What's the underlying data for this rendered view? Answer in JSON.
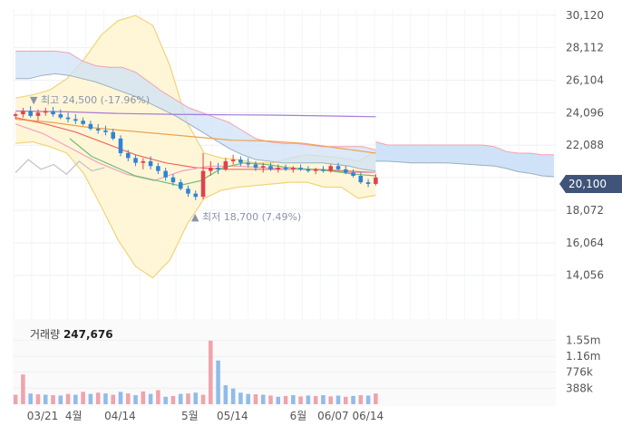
{
  "chart_data": [
    {
      "type": "candlestick",
      "title": "",
      "y_ticks": [
        "30,120",
        "28,112",
        "26,104",
        "24,096",
        "22,088",
        "20,100",
        "18,072",
        "16,064",
        "14,056"
      ],
      "y_tick_values": [
        30120,
        28112,
        26104,
        24096,
        22088,
        20100,
        18072,
        16064,
        14056
      ],
      "ylim": [
        13200,
        30500
      ],
      "current_price_label": "20,100",
      "current_price": 20100,
      "high_annotation": "▼ 최고 24,500 (-17.96%)",
      "low_annotation": "▲ 최저 18,700 (7.49%)",
      "total_days": 140,
      "candle_days": 94,
      "candles": [
        [
          23.9,
          24.1,
          23.7,
          24.0
        ],
        [
          24.0,
          24.4,
          23.8,
          24.2
        ],
        [
          24.2,
          24.5,
          23.8,
          23.9
        ],
        [
          23.9,
          24.3,
          23.6,
          24.1
        ],
        [
          24.1,
          24.4,
          23.9,
          24.2
        ],
        [
          24.2,
          24.45,
          23.85,
          24.0
        ],
        [
          24.0,
          24.3,
          23.7,
          23.8
        ],
        [
          23.8,
          24.1,
          23.5,
          23.7
        ],
        [
          23.7,
          24.0,
          23.4,
          23.6
        ],
        [
          23.6,
          23.8,
          23.3,
          23.4
        ],
        [
          23.4,
          23.6,
          23.0,
          23.1
        ],
        [
          23.1,
          23.4,
          22.8,
          23.0
        ],
        [
          23.0,
          23.3,
          22.7,
          22.9
        ],
        [
          22.9,
          23.1,
          22.4,
          22.5
        ],
        [
          22.5,
          22.7,
          21.4,
          21.6
        ],
        [
          21.6,
          21.8,
          21.1,
          21.3
        ],
        [
          21.3,
          21.5,
          20.8,
          21.0
        ],
        [
          21.0,
          21.3,
          20.6,
          21.1
        ],
        [
          21.1,
          21.4,
          20.6,
          20.8
        ],
        [
          20.8,
          21.0,
          20.3,
          20.5
        ],
        [
          20.5,
          20.7,
          19.9,
          20.1
        ],
        [
          20.1,
          20.3,
          19.6,
          19.8
        ],
        [
          19.8,
          20.0,
          19.3,
          19.4
        ],
        [
          19.4,
          19.6,
          18.9,
          19.1
        ],
        [
          19.1,
          19.3,
          18.7,
          18.9
        ],
        [
          18.9,
          21.6,
          18.75,
          20.5
        ],
        [
          20.5,
          21.1,
          20.2,
          20.7
        ],
        [
          20.7,
          21.0,
          20.3,
          20.6
        ],
        [
          20.6,
          21.3,
          20.5,
          21.1
        ],
        [
          21.1,
          21.5,
          20.9,
          21.2
        ],
        [
          21.2,
          21.4,
          20.8,
          21.0
        ],
        [
          21.0,
          21.3,
          20.7,
          20.9
        ],
        [
          20.9,
          21.1,
          20.5,
          20.7
        ],
        [
          20.7,
          21.0,
          20.4,
          20.8
        ],
        [
          20.8,
          21.0,
          20.5,
          20.6
        ],
        [
          20.6,
          20.9,
          20.4,
          20.7
        ],
        [
          20.7,
          20.9,
          20.5,
          20.6
        ],
        [
          20.6,
          20.8,
          20.4,
          20.7
        ],
        [
          20.7,
          20.9,
          20.5,
          20.6
        ],
        [
          20.6,
          20.8,
          20.4,
          20.5
        ],
        [
          20.5,
          20.7,
          20.3,
          20.6
        ],
        [
          20.6,
          20.8,
          20.4,
          20.5
        ],
        [
          20.5,
          20.9,
          20.4,
          20.8
        ],
        [
          20.8,
          21.0,
          20.5,
          20.6
        ],
        [
          20.6,
          20.8,
          20.3,
          20.4
        ],
        [
          20.4,
          20.6,
          20.1,
          20.2
        ],
        [
          20.2,
          20.4,
          19.7,
          19.8
        ],
        [
          19.8,
          20.0,
          19.5,
          19.7
        ],
        [
          19.7,
          20.3,
          19.6,
          20.1
        ]
      ],
      "ichimoku_band": {
        "upper_left": [
          27.9,
          27.9,
          27.9,
          27.9,
          27.8,
          27.3,
          27.0,
          26.9,
          26.9,
          26.6,
          26.0,
          25.4,
          24.9,
          24.4,
          24.1,
          23.8,
          23.5,
          23.0,
          22.5,
          22.3,
          22.2,
          22.2,
          22.1,
          22.0,
          22.0,
          22.0,
          22.0,
          21.8
        ],
        "lower_left": [
          26.2,
          26.2,
          26.4,
          26.5,
          26.4,
          26.2,
          26.0,
          25.7,
          25.4,
          25.1,
          24.7,
          24.3,
          23.9,
          23.4,
          22.9,
          22.4,
          21.9,
          21.5,
          21.2,
          21.1,
          21.0,
          21.0,
          21.0,
          21.0,
          20.9,
          20.8,
          20.6,
          20.5
        ],
        "cloud_upper": [
          22.3,
          22.1,
          22.1,
          22.1,
          22.1,
          22.1,
          22.1,
          22.1,
          22.1,
          22.1,
          22.0,
          21.7,
          21.6,
          21.6,
          21.5,
          21.5
        ],
        "cloud_lower": [
          21.1,
          21.1,
          21.05,
          21.0,
          21.0,
          21.0,
          21.0,
          20.95,
          20.9,
          20.85,
          20.8,
          20.65,
          20.45,
          20.35,
          20.2,
          20.15
        ]
      },
      "bollinger": {
        "upper": [
          25.0,
          25.2,
          25.5,
          26.2,
          27.4,
          28.9,
          29.8,
          30.1,
          29.5,
          27.0,
          23.5,
          21.6,
          21.3,
          21.2,
          21.0,
          21.0,
          21.3,
          21.5,
          21.4,
          21.3,
          21.1,
          21.7
        ],
        "lower": [
          22.2,
          22.3,
          22.0,
          21.6,
          20.3,
          18.3,
          16.2,
          14.6,
          13.9,
          15.0,
          17.2,
          18.8,
          19.3,
          19.5,
          19.6,
          19.7,
          19.8,
          19.8,
          19.5,
          19.5,
          18.8,
          19.0
        ]
      },
      "moving_averages": {
        "purple": [
          24.2,
          24.15,
          24.05,
          24.0,
          23.97,
          23.95,
          23.9,
          23.85
        ],
        "orange": [
          23.7,
          23.5,
          23.2,
          23.0,
          22.8,
          22.6,
          22.4,
          22.35,
          22.2,
          21.9,
          21.6
        ],
        "red": [
          23.8,
          23.4,
          22.9,
          22.2,
          21.5,
          21.0,
          20.7,
          20.6,
          20.6,
          20.6,
          20.6,
          20.5,
          20.4
        ],
        "pink": [
          23.4,
          22.8,
          21.9,
          21.0,
          20.3,
          19.9,
          20.5,
          20.8,
          20.8,
          20.7,
          20.6,
          20.55,
          20.4,
          20.4
        ],
        "green": [
          22.5,
          21.4,
          20.8,
          20.2,
          19.9,
          19.6,
          19.9,
          20.7,
          21.0,
          20.9,
          20.7,
          20.6,
          20.5,
          20.3,
          20.2
        ],
        "gray": [
          20.4,
          21.2,
          20.6,
          20.9,
          20.3,
          21.1,
          20.5,
          20.7
        ]
      },
      "colors": {
        "up": "#e2404b",
        "down": "#2f83d4",
        "cloud_fill": "#cfe2f7",
        "cloud_line": "#9ab0bf",
        "cloud_edge": "#f4a0b2",
        "bollinger_fill": "#fff6d8",
        "bollinger_line": "#f0d478",
        "current_badge": "#3f5478"
      }
    },
    {
      "type": "bar",
      "title": "거래량 247,676",
      "title_label": "거래량",
      "title_value": "247,676",
      "y_ticks": [
        "1.55m",
        "1.16m",
        "776k",
        "388k"
      ],
      "y_tick_values": [
        1550000,
        1160000,
        776000,
        388000
      ],
      "ylim": [
        0,
        2000000
      ],
      "x_ticks": [
        {
          "label": "03/21",
          "day": 7
        },
        {
          "label": "4월",
          "day": 15
        },
        {
          "label": "04/14",
          "day": 27
        },
        {
          "label": "5월",
          "day": 45
        },
        {
          "label": "05/14",
          "day": 56
        },
        {
          "label": "6월",
          "day": 73
        },
        {
          "label": "06/07",
          "day": 82
        },
        {
          "label": "06/14",
          "day": 91
        }
      ],
      "values": [
        230000,
        720000,
        260000,
        240000,
        230000,
        220000,
        210000,
        250000,
        230000,
        300000,
        250000,
        280000,
        260000,
        230000,
        300000,
        260000,
        220000,
        310000,
        250000,
        340000,
        180000,
        200000,
        250000,
        260000,
        280000,
        230000,
        1540000,
        1060000,
        460000,
        380000,
        280000,
        250000,
        240000,
        230000,
        210000,
        180000,
        200000,
        220000,
        190000,
        210000,
        200000,
        220000,
        190000,
        210000,
        180000,
        200000,
        220000,
        210000,
        260000
      ],
      "up_flags": [
        true,
        true,
        false,
        true,
        false,
        true,
        false,
        true,
        false,
        true,
        false,
        true,
        false,
        true,
        false,
        true,
        false,
        true,
        false,
        true,
        false,
        true,
        false,
        true,
        false,
        true,
        true,
        false,
        false,
        false,
        false,
        false,
        true,
        false,
        true,
        false,
        true,
        false,
        true,
        false,
        true,
        false,
        true,
        false,
        true,
        false,
        true,
        false,
        true
      ]
    }
  ]
}
